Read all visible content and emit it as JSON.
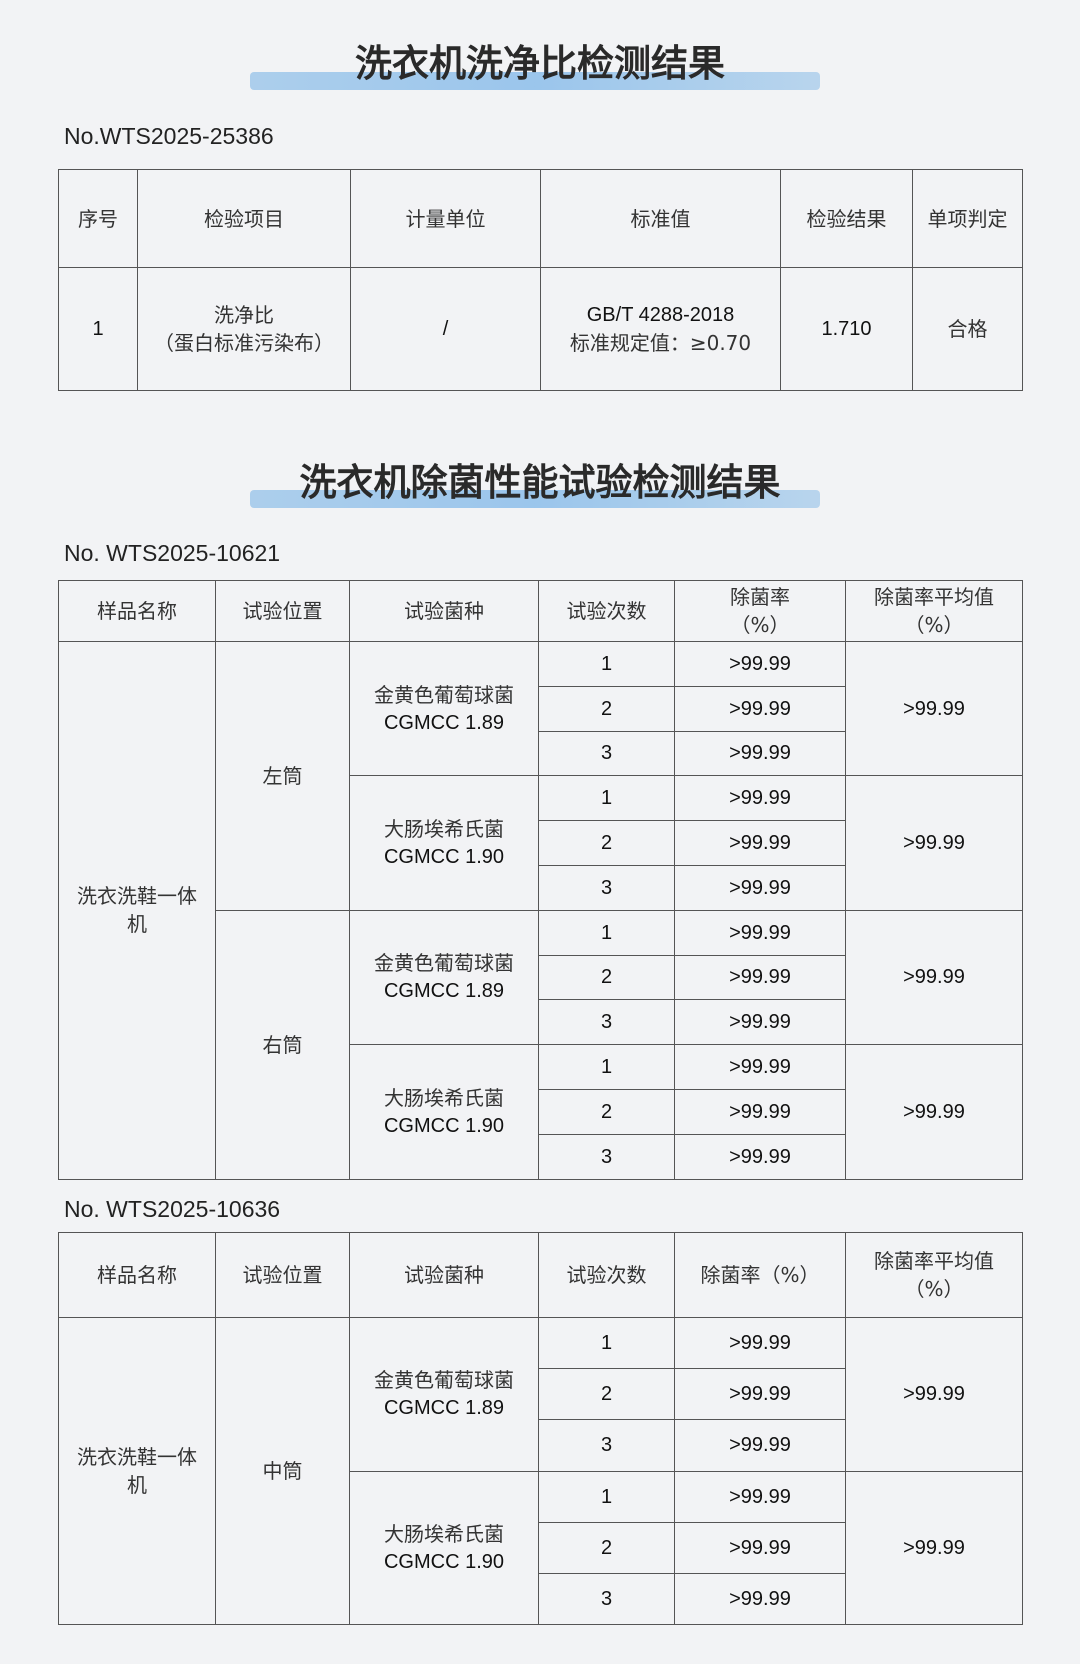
{
  "section1": {
    "title": "洗衣机洗净比检测结果",
    "report_no": "No.WTS2025-25386",
    "headers": [
      "序号",
      "检验项目",
      "计量单位",
      "标准值",
      "检验结果",
      "单项判定"
    ],
    "row": {
      "index": "1",
      "item_line1": "洗净比",
      "item_line2": "（蛋白标准污染布）",
      "unit": "/",
      "standard_line1": "GB/T 4288-2018",
      "standard_line2": "标准规定值：≥0.70",
      "result": "1.710",
      "judgement": "合格"
    }
  },
  "section2": {
    "title": "洗衣机除菌性能试验检测结果",
    "table1": {
      "report_no": "No. WTS2025-10621",
      "headers": [
        "样品名称",
        "试验位置",
        "试验菌种",
        "试验次数",
        "除菌率\n（%）",
        "除菌率平均值\n（%）"
      ],
      "sample": "洗衣洗鞋一体机",
      "positions": [
        {
          "name": "左筒",
          "strains": [
            {
              "name": "金黄色葡萄球菌",
              "code": "CGMCC 1.89",
              "trials": [
                "1",
                "2",
                "3"
              ],
              "rates": [
                ">99.99",
                ">99.99",
                ">99.99"
              ],
              "avg": ">99.99"
            },
            {
              "name": "大肠埃希氏菌",
              "code": "CGMCC 1.90",
              "trials": [
                "1",
                "2",
                "3"
              ],
              "rates": [
                ">99.99",
                ">99.99",
                ">99.99"
              ],
              "avg": ">99.99"
            }
          ]
        },
        {
          "name": "右筒",
          "strains": [
            {
              "name": "金黄色葡萄球菌",
              "code": "CGMCC 1.89",
              "trials": [
                "1",
                "2",
                "3"
              ],
              "rates": [
                ">99.99",
                ">99.99",
                ">99.99"
              ],
              "avg": ">99.99"
            },
            {
              "name": "大肠埃希氏菌",
              "code": "CGMCC 1.90",
              "trials": [
                "1",
                "2",
                "3"
              ],
              "rates": [
                ">99.99",
                ">99.99",
                ">99.99"
              ],
              "avg": ">99.99"
            }
          ]
        }
      ]
    },
    "table2": {
      "report_no": "No. WTS2025-10636",
      "headers": [
        "样品名称",
        "试验位置",
        "试验菌种",
        "试验次数",
        "除菌率（%）",
        "除菌率平均值\n（%）"
      ],
      "sample": "洗衣洗鞋一体机",
      "positions": [
        {
          "name": "中筒",
          "strains": [
            {
              "name": "金黄色葡萄球菌",
              "code": "CGMCC 1.89",
              "trials": [
                "1",
                "2",
                "3"
              ],
              "rates": [
                ">99.99",
                ">99.99",
                ">99.99"
              ],
              "avg": ">99.99"
            },
            {
              "name": "大肠埃希氏菌",
              "code": "CGMCC 1.90",
              "trials": [
                "1",
                "2",
                "3"
              ],
              "rates": [
                ">99.99",
                ">99.99",
                ">99.99"
              ],
              "avg": ">99.99"
            }
          ]
        }
      ]
    }
  },
  "colors": {
    "highlight": "#a9cdef",
    "border": "#555555",
    "background": "#f2f3f5"
  }
}
